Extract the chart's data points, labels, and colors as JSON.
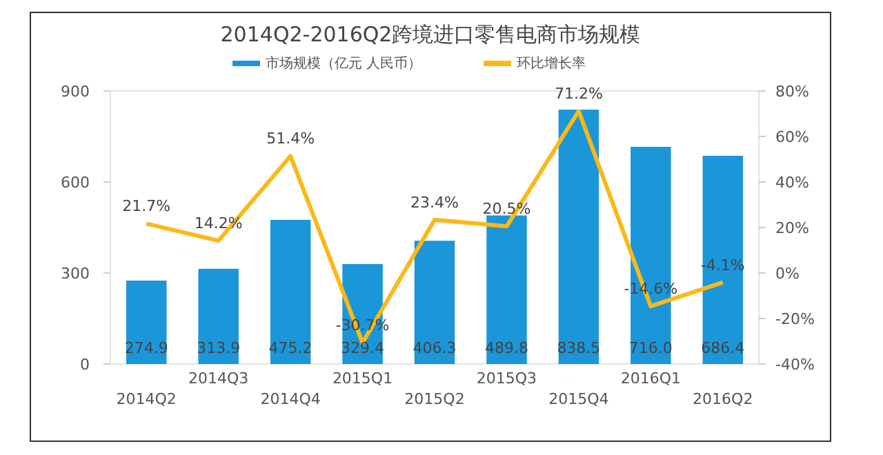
{
  "chart_data": {
    "type": "bar",
    "title": "2014Q2-2016Q2跨境进口零售电商市场规模",
    "categories": [
      "2014Q2",
      "2014Q3",
      "2014Q4",
      "2015Q1",
      "2015Q2",
      "2015Q3",
      "2015Q4",
      "2016Q1",
      "2016Q2"
    ],
    "series": [
      {
        "name": "市场规模（亿元 人民币）",
        "color": "#1a96d9",
        "values": [
          274.9,
          313.9,
          475.2,
          329.4,
          406.3,
          489.8,
          838.5,
          716.0,
          686.4
        ],
        "value_labels": [
          "274.9",
          "313.9",
          "475.2",
          "329.4",
          "406.3",
          "489.8",
          "838.5",
          "716.0",
          "686.4"
        ]
      },
      {
        "name": "环比增长率",
        "type": "line",
        "axis": "y2",
        "color": "#fbb917",
        "values": [
          21.7,
          14.2,
          51.4,
          -30.7,
          23.4,
          20.5,
          71.2,
          -14.6,
          -4.1
        ],
        "value_labels": [
          "21.7%",
          "14.2%",
          "51.4%",
          "-30.7%",
          "23.4%",
          "20.5%",
          "71.2%",
          "-14.6%",
          "-4.1%"
        ]
      }
    ],
    "ylim": [
      0,
      900
    ],
    "yticks": [
      0,
      300,
      600,
      900
    ],
    "y2lim": [
      -40,
      80
    ],
    "y2ticks": [
      {
        "value": -40,
        "label": "-40%"
      },
      {
        "value": -20,
        "label": "-20%"
      },
      {
        "value": 0,
        "label": "0%"
      },
      {
        "value": 20,
        "label": "20%"
      },
      {
        "value": 40,
        "label": "40%"
      },
      {
        "value": 60,
        "label": "60%"
      },
      {
        "value": 80,
        "label": "80%"
      }
    ],
    "legend": "top"
  }
}
